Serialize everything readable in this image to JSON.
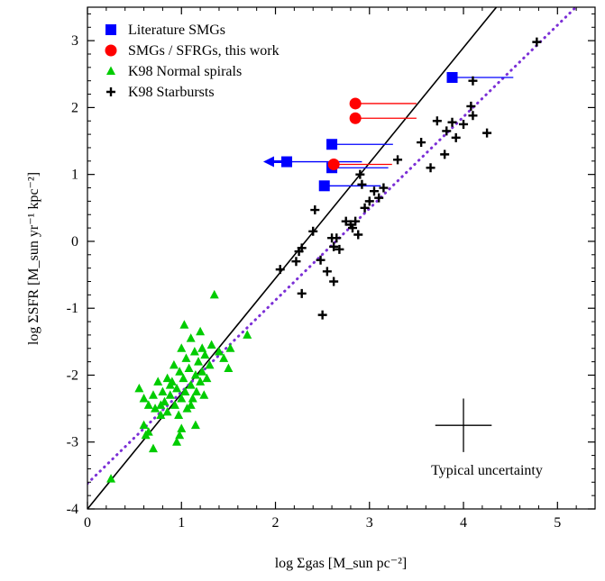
{
  "chart_data": {
    "type": "scatter",
    "title": "",
    "xlabel": "log Σgas [M_sun pc⁻²]",
    "ylabel": "log ΣSFR [M_sun yr⁻¹ kpc⁻²]",
    "xlim": [
      0,
      5.4
    ],
    "ylim": [
      -4,
      3.5
    ],
    "x_ticks": [
      0,
      1,
      2,
      3,
      4,
      5
    ],
    "y_ticks": [
      -4,
      -3,
      -2,
      -1,
      0,
      1,
      2,
      3
    ],
    "x_tick_labels": [
      "0",
      "1",
      "2",
      "3",
      "4",
      "5"
    ],
    "y_tick_labels": [
      "-4",
      "-3",
      "-2",
      "-1",
      "0",
      "1",
      "2",
      "3"
    ],
    "legend_position": "top-left",
    "grid": false,
    "annotation": "Typical uncertainty",
    "uncertainty_cross": {
      "x": 4.0,
      "y": -2.75,
      "dx": 0.3,
      "dy": 0.4
    },
    "series": [
      {
        "name": "Literature SMGs",
        "marker": "square",
        "color": "#0000ff",
        "points": [
          {
            "x": 3.88,
            "y": 2.45,
            "xerr_hi": 0.65
          },
          {
            "x": 2.6,
            "y": 1.45,
            "xerr_hi": 0.65
          },
          {
            "x": 2.6,
            "y": 1.1,
            "xerr_hi": 0.6
          },
          {
            "x": 2.52,
            "y": 0.83,
            "xerr_hi": 0.6
          },
          {
            "x": 2.12,
            "y": 1.19,
            "xerr_lo": 0.25,
            "xerr_hi": 0.8,
            "arrow": "left"
          }
        ]
      },
      {
        "name": "SMGs / SFRGs, this work",
        "marker": "circle",
        "color": "#ff0000",
        "points": [
          {
            "x": 2.85,
            "y": 2.06,
            "xerr_hi": 0.65
          },
          {
            "x": 2.85,
            "y": 1.84,
            "xerr_hi": 0.65
          },
          {
            "x": 2.62,
            "y": 1.15,
            "xerr_hi": 0.62
          }
        ]
      },
      {
        "name": "K98 Normal spirals",
        "marker": "triangle",
        "color": "#00cc00",
        "points": [
          [
            0.25,
            -3.55
          ],
          [
            0.6,
            -2.75
          ],
          [
            0.65,
            -2.85
          ],
          [
            0.7,
            -3.1
          ],
          [
            0.55,
            -2.2
          ],
          [
            0.6,
            -2.35
          ],
          [
            0.65,
            -2.45
          ],
          [
            0.7,
            -2.3
          ],
          [
            0.72,
            -2.5
          ],
          [
            0.75,
            -2.1
          ],
          [
            0.78,
            -2.6
          ],
          [
            0.8,
            -2.25
          ],
          [
            0.82,
            -2.4
          ],
          [
            0.85,
            -2.55
          ],
          [
            0.88,
            -2.3
          ],
          [
            0.9,
            -2.1
          ],
          [
            0.92,
            -1.85
          ],
          [
            0.93,
            -2.45
          ],
          [
            0.95,
            -2.2
          ],
          [
            0.97,
            -2.6
          ],
          [
            0.98,
            -1.95
          ],
          [
            1.0,
            -2.35
          ],
          [
            1.0,
            -1.6
          ],
          [
            1.02,
            -2.05
          ],
          [
            1.04,
            -2.25
          ],
          [
            1.05,
            -1.75
          ],
          [
            1.06,
            -2.5
          ],
          [
            1.08,
            -1.9
          ],
          [
            1.1,
            -2.15
          ],
          [
            1.1,
            -1.45
          ],
          [
            1.12,
            -2.35
          ],
          [
            1.14,
            -1.65
          ],
          [
            1.15,
            -2.0
          ],
          [
            1.16,
            -2.25
          ],
          [
            1.18,
            -1.8
          ],
          [
            1.2,
            -2.1
          ],
          [
            1.2,
            -1.35
          ],
          [
            1.22,
            -1.95
          ],
          [
            1.24,
            -2.3
          ],
          [
            1.25,
            -1.7
          ],
          [
            1.27,
            -2.05
          ],
          [
            1.3,
            -1.85
          ],
          [
            1.32,
            -1.55
          ],
          [
            1.35,
            -0.8
          ],
          [
            1.4,
            -1.65
          ],
          [
            1.45,
            -1.75
          ],
          [
            1.5,
            -1.9
          ],
          [
            1.52,
            -1.6
          ],
          [
            1.7,
            -1.4
          ],
          [
            0.95,
            -3.0
          ],
          [
            1.0,
            -2.8
          ],
          [
            1.15,
            -2.75
          ],
          [
            0.88,
            -2.15
          ],
          [
            0.62,
            -2.9
          ],
          [
            1.03,
            -1.25
          ],
          [
            0.98,
            -2.9
          ],
          [
            1.1,
            -2.45
          ],
          [
            0.85,
            -2.05
          ],
          [
            1.22,
            -1.6
          ],
          [
            0.78,
            -2.45
          ]
        ]
      },
      {
        "name": "K98 Starbursts",
        "marker": "plus",
        "color": "#000000",
        "points": [
          [
            2.05,
            -0.42
          ],
          [
            2.22,
            -0.3
          ],
          [
            2.25,
            -0.15
          ],
          [
            2.28,
            -0.1
          ],
          [
            2.28,
            -0.78
          ],
          [
            2.4,
            0.15
          ],
          [
            2.42,
            0.47
          ],
          [
            2.48,
            -0.28
          ],
          [
            2.5,
            -1.1
          ],
          [
            2.55,
            -0.45
          ],
          [
            2.6,
            0.05
          ],
          [
            2.62,
            -0.08
          ],
          [
            2.62,
            -0.6
          ],
          [
            2.65,
            0.05
          ],
          [
            2.68,
            -0.12
          ],
          [
            2.75,
            0.3
          ],
          [
            2.8,
            0.25
          ],
          [
            2.82,
            0.2
          ],
          [
            2.85,
            0.3
          ],
          [
            2.88,
            0.1
          ],
          [
            2.9,
            1.0
          ],
          [
            2.92,
            0.85
          ],
          [
            2.95,
            0.5
          ],
          [
            3.0,
            0.6
          ],
          [
            3.05,
            0.75
          ],
          [
            3.1,
            0.65
          ],
          [
            3.15,
            0.8
          ],
          [
            3.3,
            1.22
          ],
          [
            3.55,
            1.48
          ],
          [
            3.65,
            1.1
          ],
          [
            3.72,
            1.8
          ],
          [
            3.8,
            1.3
          ],
          [
            3.82,
            1.65
          ],
          [
            3.88,
            1.78
          ],
          [
            3.92,
            1.55
          ],
          [
            4.08,
            2.02
          ],
          [
            4.1,
            2.4
          ],
          [
            4.1,
            1.88
          ],
          [
            4.25,
            1.62
          ],
          [
            4.78,
            2.98
          ],
          [
            4.0,
            1.75
          ]
        ]
      }
    ],
    "fit_lines": [
      {
        "style": "solid",
        "color": "#000000",
        "x": [
          0,
          4.35
        ],
        "y": [
          -4,
          3.5
        ]
      },
      {
        "style": "dotted",
        "color": "#7b2fd6",
        "x": [
          0,
          5.4
        ],
        "y": [
          -3.62,
          3.78
        ]
      }
    ]
  }
}
